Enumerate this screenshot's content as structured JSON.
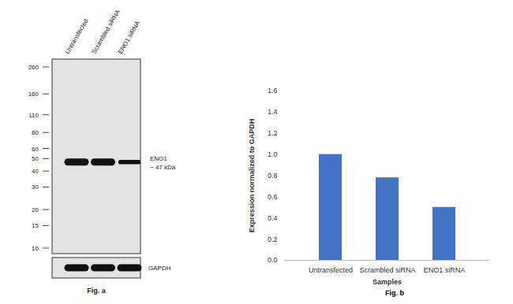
{
  "blot": {
    "caption": "Fig. a",
    "lanes": [
      "Untransfected",
      "Scrambled siRNA",
      "ENO1 siRNA"
    ],
    "markers": [
      260,
      160,
      110,
      80,
      60,
      50,
      40,
      30,
      20,
      15,
      10
    ],
    "target": {
      "name": "ENO1",
      "size_label": "~ 47 kDa",
      "kda": 47,
      "band_strength": [
        1,
        1,
        0.45
      ]
    },
    "loading_control": {
      "name": "GAPDH",
      "band_strength": [
        1,
        1,
        1
      ]
    }
  },
  "chart_data": {
    "type": "bar",
    "caption": "Fig. b",
    "categories": [
      "Untransfected",
      "Scrambled siRNA",
      "ENO1 siRNA"
    ],
    "values": [
      1.0,
      0.78,
      0.5
    ],
    "color": "#4472c4",
    "x_label": "Samples",
    "y_label": "Expression normalized to GAPDH",
    "ylim": [
      0,
      1.6
    ],
    "yticks": [
      0,
      0.2,
      0.4,
      0.6,
      0.8,
      1,
      1.2,
      1.4,
      1.6
    ],
    "grid": false
  }
}
